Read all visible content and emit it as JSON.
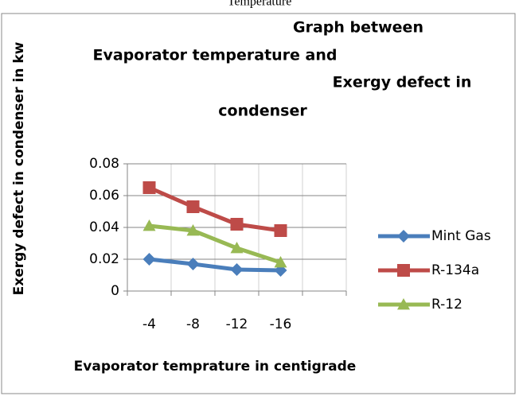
{
  "caption": "Temperature",
  "chart_data": {
    "type": "line",
    "title": [
      "Graph between",
      "Evaporator temperature and",
      "Exergy defect in",
      "condenser"
    ],
    "x_label": "Evaporator temprature in centigrade",
    "y_label": "Exergy defect in condenser in kw",
    "categories": [
      "-4",
      "-8",
      "-12",
      "-16",
      null
    ],
    "series": [
      {
        "name": "Mint Gas",
        "color": "#4a7ebb",
        "marker": "diamond",
        "values": [
          0.02,
          0.017,
          0.0135,
          0.013,
          null
        ]
      },
      {
        "name": "R-134a",
        "color": "#be4b48",
        "marker": "square",
        "values": [
          0.065,
          0.053,
          0.042,
          0.038,
          null
        ]
      },
      {
        "name": "R-12",
        "color": "#98b954",
        "marker": "triangle",
        "values": [
          0.041,
          0.038,
          0.027,
          0.018,
          null
        ]
      }
    ],
    "ylim": [
      0,
      0.08
    ],
    "yticks": [
      0,
      0.02,
      0.04,
      0.06,
      0.08
    ],
    "grid": true,
    "legend": "right"
  }
}
